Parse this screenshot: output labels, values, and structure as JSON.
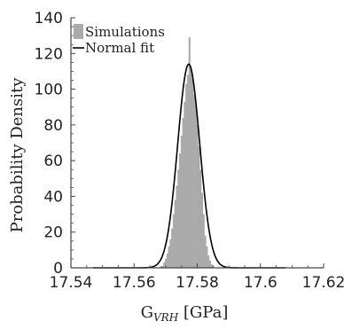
{
  "chart_data": {
    "type": "bar",
    "title": "",
    "xlabel": {
      "main": "G",
      "sub": "VRH",
      "unit": " [GPa]"
    },
    "ylabel": "Probability Density",
    "xlim": [
      17.54,
      17.62
    ],
    "ylim": [
      0,
      140
    ],
    "xticks": [
      17.54,
      17.56,
      17.58,
      17.6,
      17.62
    ],
    "xtick_labels": [
      "17.54",
      "17.56",
      "17.58",
      "17.6",
      "17.62"
    ],
    "yticks": [
      0,
      20,
      40,
      60,
      80,
      100,
      120,
      140
    ],
    "ytick_labels": [
      "0",
      "20",
      "40",
      "60",
      "80",
      "100",
      "120",
      "140"
    ],
    "bin_width": 0.0005,
    "bins_x": [
      17.5685,
      17.569,
      17.5695,
      17.57,
      17.5705,
      17.571,
      17.5715,
      17.572,
      17.5725,
      17.573,
      17.5735,
      17.574,
      17.5745,
      17.575,
      17.5755,
      17.576,
      17.5765,
      17.577,
      17.5775,
      17.578,
      17.5785,
      17.579,
      17.5795,
      17.58,
      17.5805,
      17.581,
      17.5815,
      17.582,
      17.5825,
      17.583,
      17.5835,
      17.584,
      17.5845,
      17.585
    ],
    "bins_y": [
      1,
      1,
      3,
      5,
      8,
      12,
      16,
      22,
      30,
      38,
      46,
      55,
      64,
      74,
      84,
      93,
      103,
      108,
      129,
      112,
      106,
      97,
      91,
      80,
      68,
      55,
      42,
      30,
      18,
      12,
      7,
      4,
      2,
      1
    ],
    "fit": {
      "mean": 17.5773,
      "sd": 0.0035,
      "peak": 114
    },
    "grid": false,
    "legend": {
      "placement": "top-left",
      "entries": [
        "Simulations",
        "Normal fit"
      ]
    },
    "colors": {
      "histogram": "#aaaaaa",
      "fit_line": "#000000",
      "axes": "#444444"
    }
  }
}
